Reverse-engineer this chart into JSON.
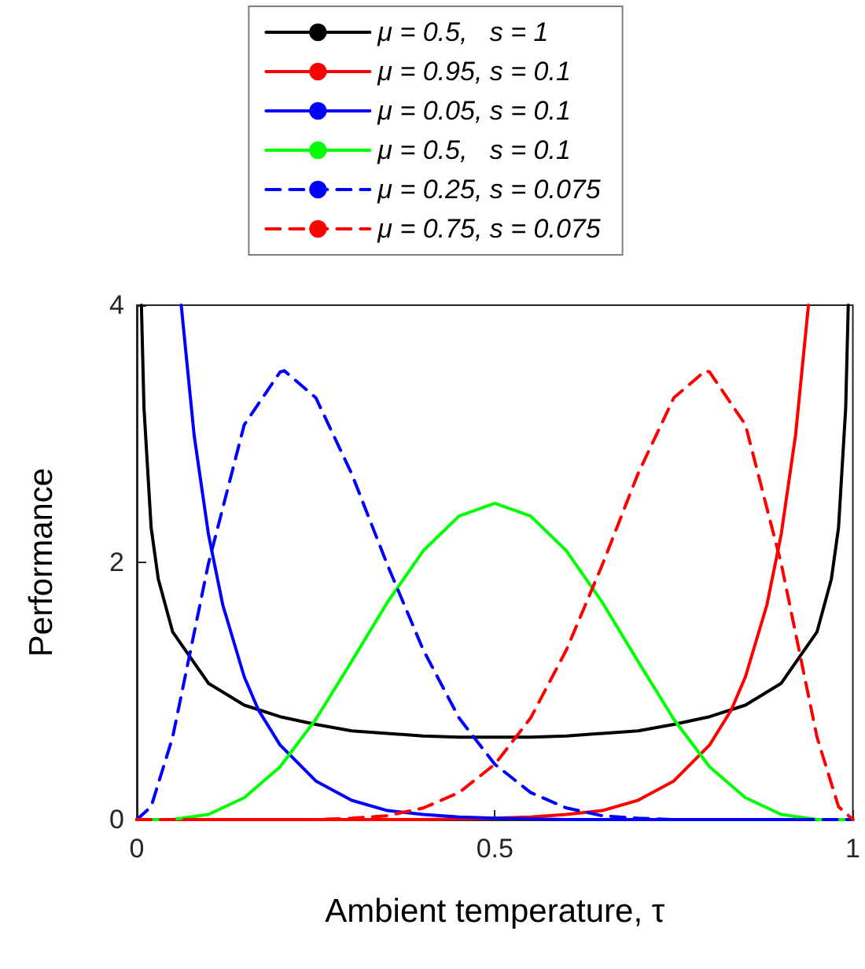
{
  "chart_data": {
    "type": "line",
    "xlabel": "Ambient temperature, τ",
    "ylabel": "Performance",
    "xlim": [
      0,
      1
    ],
    "ylim": [
      0,
      4
    ],
    "xticks": [
      0,
      0.5,
      1
    ],
    "yticks": [
      0,
      2,
      4
    ],
    "grid": false,
    "legend": "top",
    "marker": "none",
    "series": [
      {
        "name": "μ = 0.5,   s = 1",
        "color": "#000000",
        "line_style": "solid",
        "x": [
          0.0064,
          0.01,
          0.02,
          0.03,
          0.05,
          0.1,
          0.15,
          0.2,
          0.25,
          0.3,
          0.35,
          0.4,
          0.45,
          0.5,
          0.55,
          0.6,
          0.65,
          0.7,
          0.75,
          0.8,
          0.85,
          0.9,
          0.95,
          0.97,
          0.98,
          0.99,
          0.9936
        ],
        "values": [
          4,
          3.2,
          2.27,
          1.87,
          1.46,
          1.06,
          0.89,
          0.8,
          0.74,
          0.69,
          0.67,
          0.65,
          0.64,
          0.64,
          0.64,
          0.65,
          0.67,
          0.69,
          0.74,
          0.8,
          0.89,
          1.06,
          1.46,
          1.87,
          2.27,
          3.2,
          4
        ]
      },
      {
        "name": "μ = 0.95, s = 0.1",
        "color": "#ff0000",
        "line_style": "solid",
        "x": [
          0,
          0.3,
          0.4,
          0.5,
          0.55,
          0.6,
          0.65,
          0.7,
          0.75,
          0.8,
          0.83,
          0.85,
          0.88,
          0.9,
          0.92,
          0.938
        ],
        "values": [
          0,
          0,
          0,
          0.01,
          0.02,
          0.04,
          0.07,
          0.15,
          0.3,
          0.58,
          0.85,
          1.11,
          1.67,
          2.22,
          2.99,
          4
        ]
      },
      {
        "name": "μ = 0.05, s = 0.1",
        "color": "#0000ff",
        "line_style": "solid",
        "x": [
          0.062,
          0.08,
          0.1,
          0.12,
          0.15,
          0.17,
          0.2,
          0.25,
          0.3,
          0.35,
          0.4,
          0.45,
          0.5,
          0.6,
          0.7,
          1
        ],
        "values": [
          4,
          2.99,
          2.22,
          1.67,
          1.11,
          0.85,
          0.58,
          0.3,
          0.15,
          0.07,
          0.04,
          0.02,
          0.01,
          0,
          0,
          0
        ]
      },
      {
        "name": "μ = 0.5,   s = 0.1",
        "color": "#00ff00",
        "line_style": "solid",
        "x": [
          0,
          0.05,
          0.1,
          0.15,
          0.2,
          0.25,
          0.3,
          0.35,
          0.4,
          0.45,
          0.5,
          0.55,
          0.6,
          0.65,
          0.7,
          0.75,
          0.8,
          0.85,
          0.9,
          0.95,
          1
        ],
        "values": [
          0,
          0,
          0.04,
          0.17,
          0.41,
          0.78,
          1.23,
          1.69,
          2.09,
          2.36,
          2.46,
          2.36,
          2.09,
          1.69,
          1.23,
          0.78,
          0.41,
          0.17,
          0.04,
          0,
          0
        ]
      },
      {
        "name": "μ = 0.25, s = 0.075",
        "color": "#0000ff",
        "line_style": "dashed",
        "x": [
          0,
          0.02,
          0.05,
          0.1,
          0.15,
          0.2,
          0.206,
          0.25,
          0.3,
          0.35,
          0.4,
          0.45,
          0.5,
          0.55,
          0.6,
          0.65,
          0.7,
          0.75,
          0.8,
          1
        ],
        "values": [
          0,
          0.1,
          0.64,
          1.99,
          3.07,
          3.48,
          3.49,
          3.28,
          2.69,
          1.98,
          1.32,
          0.79,
          0.43,
          0.21,
          0.09,
          0.03,
          0.01,
          0,
          0,
          0
        ]
      },
      {
        "name": "μ = 0.75, s = 0.075",
        "color": "#ff0000",
        "line_style": "dashed",
        "x": [
          0,
          0.2,
          0.25,
          0.3,
          0.35,
          0.4,
          0.45,
          0.5,
          0.55,
          0.6,
          0.65,
          0.7,
          0.75,
          0.794,
          0.8,
          0.85,
          0.9,
          0.95,
          0.98,
          1
        ],
        "values": [
          0,
          0,
          0,
          0.01,
          0.03,
          0.09,
          0.21,
          0.43,
          0.79,
          1.32,
          1.98,
          2.69,
          3.28,
          3.49,
          3.48,
          3.07,
          1.99,
          0.64,
          0.1,
          0
        ]
      }
    ]
  }
}
